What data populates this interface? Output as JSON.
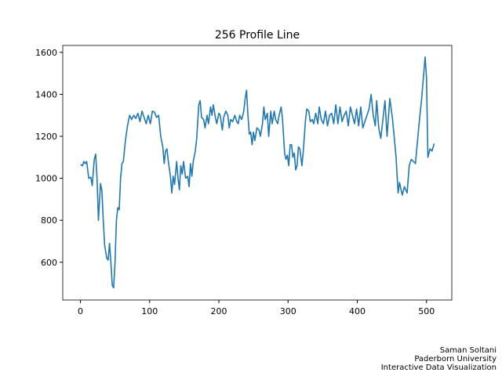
{
  "chart_data": {
    "type": "line",
    "title": "256 Profile Line",
    "x": [
      0,
      3,
      5,
      7,
      9,
      12,
      15,
      17,
      20,
      22,
      24,
      26,
      29,
      31,
      33,
      35,
      38,
      40,
      42,
      44,
      46,
      48,
      50,
      52,
      54,
      56,
      58,
      60,
      62,
      65,
      68,
      71,
      74,
      77,
      80,
      83,
      86,
      89,
      92,
      95,
      98,
      101,
      104,
      107,
      110,
      113,
      116,
      119,
      121,
      123,
      125,
      127,
      130,
      132,
      134,
      136,
      139,
      141,
      143,
      145,
      147,
      149,
      152,
      155,
      157,
      159,
      161,
      163,
      166,
      168,
      171,
      173,
      175,
      178,
      180,
      183,
      185,
      188,
      190,
      192,
      195,
      197,
      200,
      202,
      205,
      207,
      210,
      213,
      215,
      217,
      220,
      223,
      226,
      228,
      230,
      233,
      236,
      238,
      240,
      242,
      244,
      246,
      248,
      250,
      252,
      255,
      258,
      260,
      263,
      265,
      267,
      270,
      272,
      275,
      277,
      280,
      282,
      285,
      287,
      290,
      292,
      295,
      297,
      299,
      301,
      303,
      305,
      307,
      309,
      311,
      313,
      315,
      317,
      320,
      322,
      325,
      327,
      330,
      332,
      335,
      337,
      340,
      343,
      345,
      348,
      351,
      354,
      357,
      360,
      363,
      366,
      369,
      372,
      375,
      378,
      381,
      384,
      387,
      390,
      393,
      396,
      399,
      402,
      405,
      408,
      411,
      414,
      417,
      420,
      423,
      426,
      428,
      431,
      434,
      437,
      440,
      443,
      447,
      451,
      456,
      459,
      461,
      465,
      468,
      472,
      475,
      478,
      484,
      489,
      493,
      498,
      500,
      502,
      505,
      508,
      511
    ],
    "values": [
      1065,
      1060,
      1080,
      1070,
      1080,
      1000,
      1005,
      965,
      1090,
      1115,
      1000,
      800,
      975,
      940,
      800,
      680,
      620,
      610,
      690,
      600,
      490,
      478,
      600,
      800,
      860,
      850,
      1000,
      1070,
      1080,
      1180,
      1250,
      1300,
      1280,
      1300,
      1285,
      1310,
      1270,
      1320,
      1290,
      1260,
      1300,
      1260,
      1320,
      1315,
      1290,
      1300,
      1200,
      1150,
      1070,
      1130,
      1140,
      1080,
      1010,
      930,
      1010,
      970,
      1080,
      1000,
      945,
      1060,
      1020,
      1080,
      1000,
      1010,
      960,
      1070,
      1010,
      1080,
      1130,
      1190,
      1350,
      1370,
      1290,
      1280,
      1240,
      1300,
      1260,
      1340,
      1300,
      1350,
      1290,
      1260,
      1310,
      1300,
      1230,
      1290,
      1320,
      1300,
      1240,
      1280,
      1270,
      1300,
      1270,
      1260,
      1300,
      1280,
      1320,
      1380,
      1420,
      1300,
      1210,
      1220,
      1160,
      1220,
      1180,
      1240,
      1230,
      1200,
      1260,
      1340,
      1280,
      1310,
      1200,
      1320,
      1260,
      1320,
      1280,
      1260,
      1300,
      1340,
      1280,
      1120,
      1090,
      1110,
      1060,
      1160,
      1160,
      1100,
      1120,
      1040,
      1060,
      1150,
      1140,
      1060,
      1130,
      1270,
      1330,
      1320,
      1270,
      1280,
      1260,
      1310,
      1260,
      1340,
      1280,
      1260,
      1320,
      1250,
      1300,
      1310,
      1260,
      1350,
      1260,
      1340,
      1270,
      1300,
      1320,
      1250,
      1340,
      1300,
      1260,
      1330,
      1250,
      1340,
      1240,
      1270,
      1300,
      1330,
      1400,
      1300,
      1250,
      1370,
      1240,
      1190,
      1280,
      1370,
      1200,
      1380,
      1280,
      1100,
      930,
      980,
      920,
      960,
      930,
      1060,
      1090,
      1070,
      1250,
      1380,
      1578,
      1480,
      1100,
      1140,
      1130,
      1165
    ],
    "color": "#1f77b4",
    "xlim": [
      -25.55,
      536.55
    ],
    "xticks": [
      0,
      100,
      200,
      300,
      400,
      500
    ],
    "ylim": [
      420,
      1633
    ],
    "yticks": [
      600,
      800,
      1000,
      1200,
      1400,
      1600
    ],
    "grid": false
  },
  "footer": [
    "Saman Soltani",
    "Paderborn University",
    "Interactive Data Visualization"
  ]
}
